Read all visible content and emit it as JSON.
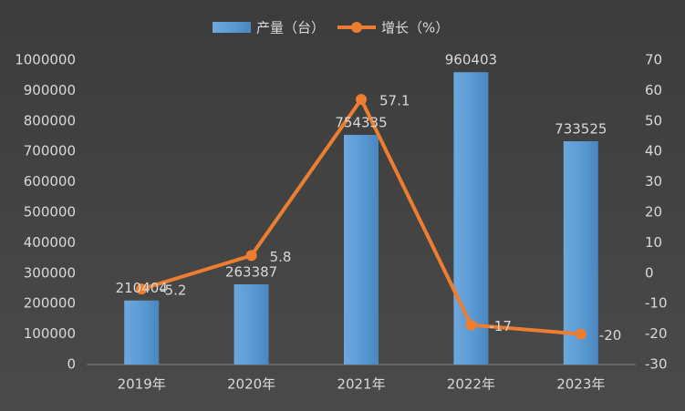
{
  "chart_data": {
    "type": "bar",
    "categories": [
      "2019年",
      "2020年",
      "2021年",
      "2022年",
      "2023年"
    ],
    "series": [
      {
        "name": "产量（台）",
        "type": "bar",
        "color": "#5b9bd5",
        "values": [
          210404,
          263387,
          754335,
          960403,
          733525
        ]
      },
      {
        "name": "增长（%）",
        "type": "line",
        "axis": "y2",
        "color": "#ed7d31",
        "values": [
          -5.2,
          5.8,
          57.1,
          -17,
          -20
        ]
      }
    ],
    "ylim": [
      0,
      1000000
    ],
    "yticks": [
      0,
      100000,
      200000,
      300000,
      400000,
      500000,
      600000,
      700000,
      800000,
      900000,
      1000000
    ],
    "y2lim": [
      -30,
      70
    ],
    "y2ticks": [
      -30,
      -20,
      -10,
      0,
      10,
      20,
      30,
      40,
      50,
      60,
      70
    ],
    "legend": "top"
  }
}
